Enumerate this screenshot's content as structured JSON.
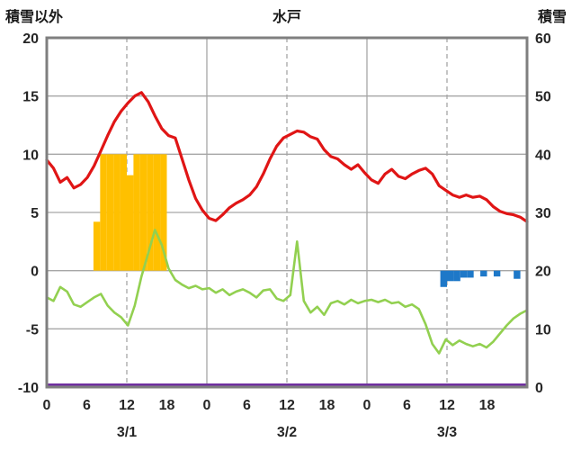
{
  "chart_data": {
    "type": "line",
    "title": "水戸",
    "left_axis": {
      "label": "積雪以外",
      "min": -10,
      "max": 20,
      "tick_step": 5,
      "ticks": [
        20,
        15,
        10,
        5,
        0,
        -5,
        -10
      ]
    },
    "right_axis": {
      "label": "積雪",
      "min": 0,
      "max": 60,
      "tick_step": 10,
      "ticks": [
        60,
        50,
        40,
        30,
        20,
        10,
        0
      ]
    },
    "x_axis": {
      "days": [
        "3/1",
        "3/2",
        "3/3"
      ],
      "hour_labels": [
        0,
        6,
        12,
        18
      ],
      "hours_per_day": 24,
      "total_hours": 72
    },
    "grid": {
      "horizontal": true,
      "vertical_solid_hours": [
        24,
        48
      ],
      "vertical_dashed_hours": [
        12,
        36,
        60
      ]
    },
    "series": [
      {
        "name": "red-line",
        "color": "#e01515",
        "axis": "left",
        "values": [
          9.5,
          8.8,
          7.6,
          8.0,
          7.1,
          7.4,
          8.0,
          9.0,
          10.3,
          11.6,
          12.8,
          13.7,
          14.4,
          15.0,
          15.3,
          14.5,
          13.3,
          12.2,
          11.6,
          11.4,
          9.6,
          7.8,
          6.2,
          5.2,
          4.5,
          4.3,
          4.8,
          5.4,
          5.8,
          6.1,
          6.5,
          7.2,
          8.3,
          9.6,
          10.7,
          11.4,
          11.7,
          12.0,
          11.9,
          11.5,
          11.3,
          10.4,
          9.8,
          9.6,
          9.1,
          8.7,
          9.1,
          8.4,
          7.8,
          7.5,
          8.3,
          8.7,
          8.1,
          7.9,
          8.3,
          8.6,
          8.8,
          8.3,
          7.3,
          6.9,
          6.5,
          6.3,
          6.5,
          6.3,
          6.4,
          6.1,
          5.5,
          5.1,
          4.9,
          4.8,
          4.6,
          4.2
        ]
      },
      {
        "name": "green-line",
        "color": "#92d050",
        "axis": "left",
        "values": [
          -2.3,
          -2.6,
          -1.4,
          -1.8,
          -2.9,
          -3.1,
          -2.7,
          -2.3,
          -2.0,
          -3.0,
          -3.6,
          -4.0,
          -4.7,
          -3.0,
          -0.5,
          1.5,
          3.5,
          2.2,
          0.2,
          -0.8,
          -1.2,
          -1.5,
          -1.3,
          -1.6,
          -1.5,
          -1.9,
          -1.6,
          -2.1,
          -1.8,
          -1.6,
          -1.9,
          -2.3,
          -1.7,
          -1.6,
          -2.4,
          -2.6,
          -2.1,
          2.5,
          -2.6,
          -3.6,
          -3.1,
          -3.8,
          -2.8,
          -2.6,
          -2.9,
          -2.5,
          -2.8,
          -2.6,
          -2.5,
          -2.7,
          -2.5,
          -2.8,
          -2.7,
          -3.1,
          -2.9,
          -3.3,
          -4.6,
          -6.3,
          -7.1,
          -5.9,
          -6.4,
          -6.0,
          -6.3,
          -6.5,
          -6.3,
          -6.6,
          -6.1,
          -5.4,
          -4.7,
          -4.1,
          -3.7,
          -3.4
        ]
      },
      {
        "name": "purple-snow-line",
        "color": "#7030a0",
        "axis": "right",
        "constant_value": 0
      }
    ],
    "bars": [
      {
        "name": "orange-bars",
        "color": "#ffc000",
        "axis": "left",
        "direction": "up",
        "points": [
          {
            "hour": 7,
            "value": 4.2
          },
          {
            "hour": 8,
            "value": 10
          },
          {
            "hour": 9,
            "value": 10
          },
          {
            "hour": 10,
            "value": 10
          },
          {
            "hour": 11,
            "value": 10
          },
          {
            "hour": 12,
            "value": 8.2
          },
          {
            "hour": 13,
            "value": 10
          },
          {
            "hour": 14,
            "value": 10
          },
          {
            "hour": 15,
            "value": 10
          },
          {
            "hour": 16,
            "value": 10
          },
          {
            "hour": 17,
            "value": 10
          }
        ]
      },
      {
        "name": "blue-bars",
        "color": "#1e78c8",
        "axis": "left",
        "direction": "down",
        "points": [
          {
            "hour": 59,
            "value": 1.4
          },
          {
            "hour": 60,
            "value": 0.9
          },
          {
            "hour": 61,
            "value": 0.9
          },
          {
            "hour": 62,
            "value": 0.6
          },
          {
            "hour": 63,
            "value": 0.6
          },
          {
            "hour": 65,
            "value": 0.5
          },
          {
            "hour": 67,
            "value": 0.5
          },
          {
            "hour": 70,
            "value": 0.7
          }
        ]
      }
    ]
  }
}
